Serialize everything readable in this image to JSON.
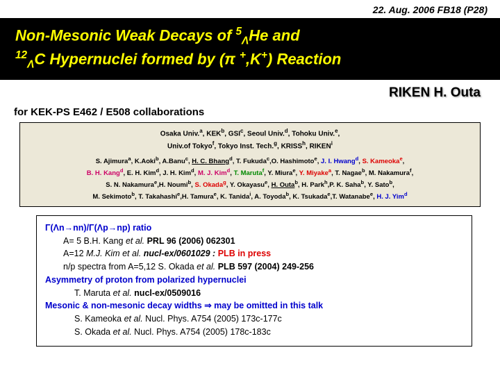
{
  "header": {
    "date": "22. Aug. 2006  FB18 (P28)",
    "title_html": "Non-Mesonic Weak Decays of <sup>5</sup><sub>Λ</sub>He and<br><sup>12</sup><sub>Λ</sub>C Hypernuclei formed by (π <sup>+</sup>,K<sup>+</sup>) Reaction",
    "affil": "RIKEN  H. Outa",
    "collab": "for KEK-PS E462 / E508 collaborations"
  },
  "authors": {
    "institutions_html": "Osaka Univ.<sup>a</sup>, KEK<sup>b</sup>, GSI<sup>c</sup>, Seoul Univ.<sup>d</sup>, Tohoku Univ.<sup>e</sup>,<br>Univ.of Tokyo<sup>f</sup>, Tokyo Inst. Tech.<sup>g</sup>, KRISS<sup>h</sup>, RIKEN<sup>i</sup>",
    "list_html": "S. Ajimura<sup>a</sup>, K.Aoki<sup>b</sup>, A.Banu<sup>c</sup>, <span class='u'>H. C. Bhang</span><sup>d</sup>, T. Fukuda<sup>c</sup>,O. Hashimoto<sup>e</sup>, <span class='blue'>J. I. Hwang<sup>d</sup></span>, <span class='red'>S. Kameoka<sup>e</sup></span>,<br><span class='mag'>B. H. Kang<sup>d</sup></span>, E. H. Kim<sup>d</sup>, J. H. Kim<sup>d</sup>, <span class='mag'>M. J. Kim<sup>d</sup></span>, <span class='grn'>T. Maruta<sup>f</sup></span>, Y. Miura<sup>e</sup>, <span class='red'>Y. Miyake<sup>a</sup></span>, T. Nagae<sup>b</sup>, M. Nakamura<sup>f</sup>,<br>S. N. Nakamura<sup>e</sup>,H. Noumi<sup>b</sup>, <span class='red'>S. Okada<sup>g</sup></span>, Y. Okayasu<sup>e</sup>, <span class='u'>H. Outa</span><sup>b</sup>, H. Park<sup>h</sup>,P. K. Saha<sup>b</sup>, Y. Sato<sup>b</sup>,<br>M. Sekimoto<sup>b</sup>, T. Takahashi<sup>e</sup>,H. Tamura<sup>e</sup>, K. Tanida<sup>i</sup>, A. Toyoda<sup>b</sup>, K. Tsukada<sup>e</sup>,T. Watanabe<sup>e</sup>, <span class='blue'>H. J. Yim<sup>d</sup></span>"
  },
  "refs": {
    "sec1_title": "Γ(Λn→nn)/Γ(Λp→np) ratio",
    "sec1_row1_html": "A=  5   B.H. Kang <span class='i'>et al.</span>   <span class='b'>PRL 96 (2006) 062301</span>",
    "sec1_row2_html": "A=12   <span class='i'>M.J. Kim et al.</span>    <span class='b i'>nucl-ex/0601029 :</span>   <span class='b red'>PLB in press</span>",
    "sec1_row3_html": "n/p spectra from A=5,12  S. Okada <span class='i'>et al.</span>   <span class='b'>PLB 597 (2004) 249-256</span>",
    "sec2_title": "Asymmetry of proton from polarized hypernuclei",
    "sec2_row1_html": "T. Maruta <span class='i'>et al.</span>    <span class='b'>nucl-ex/0509016</span>",
    "sec3_title": "Mesonic & non-mesonic decay widths   ⇒   may be omitted in this talk",
    "sec3_row1_html": "S. Kameoka <span class='i'>et al.</span> Nucl. Phys. A754 (2005) 173c-177c",
    "sec3_row2_html": "S. Okada <span class='i'>et al.</span>      Nucl. Phys. A754 (2005) 178c-183c"
  },
  "colors": {
    "title_bg": "#000000",
    "title_fg": "#ffff00",
    "authors_bg": "#ece8d8",
    "red": "#dd0000",
    "blue": "#0000cc",
    "green": "#008800",
    "magenta": "#cc0066"
  }
}
